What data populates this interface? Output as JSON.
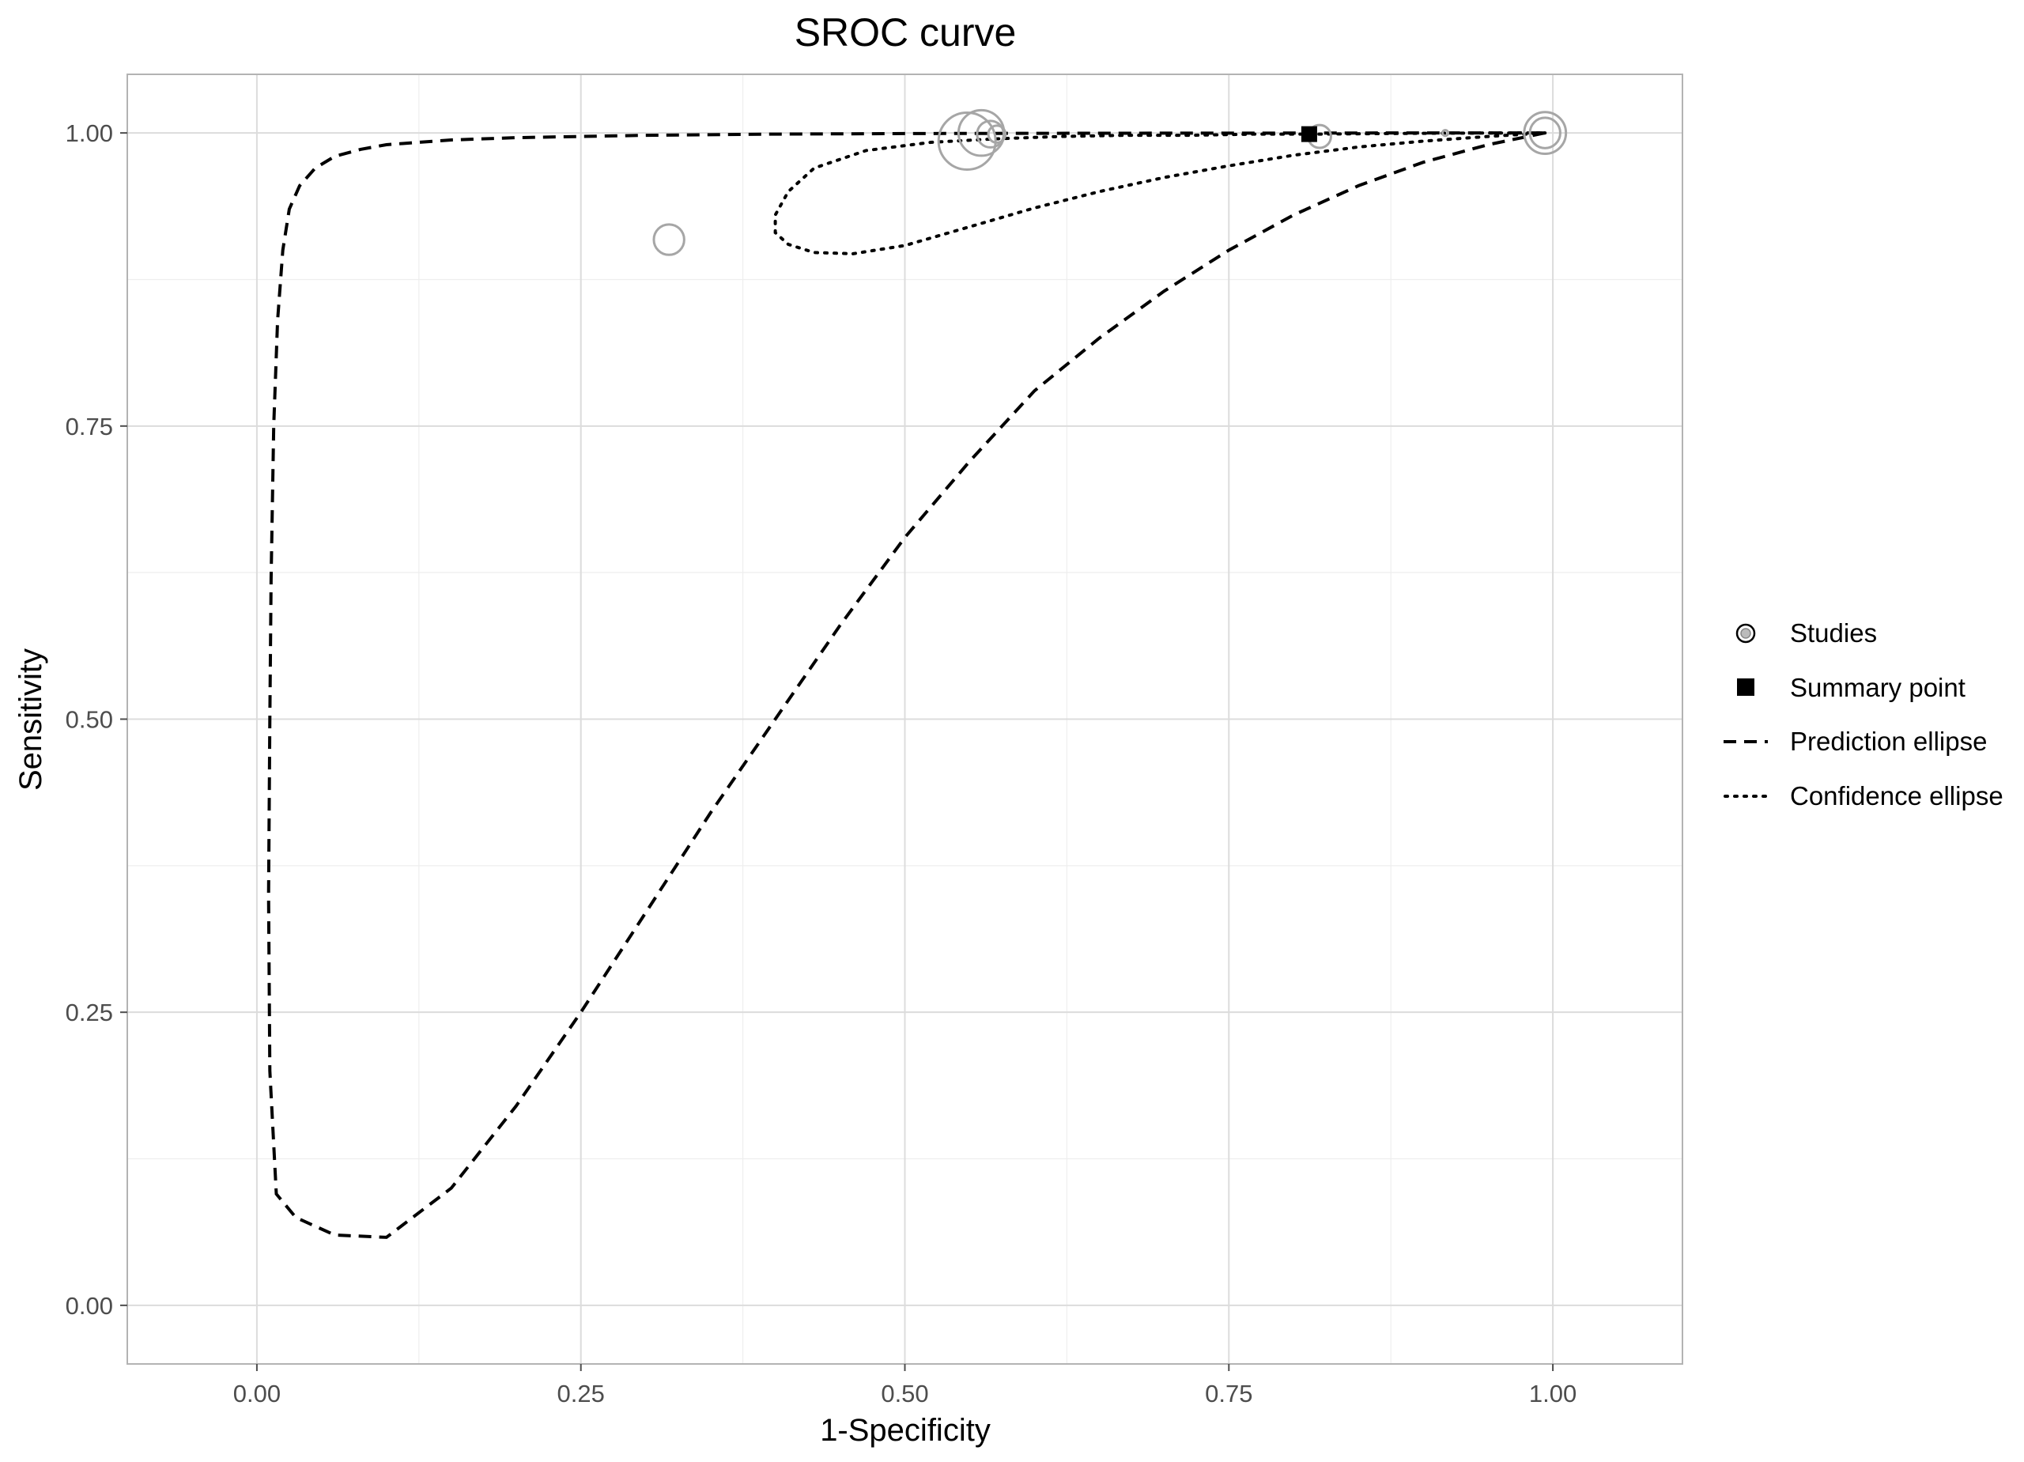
{
  "chart_data": {
    "type": "scatter",
    "title": "SROC curve",
    "xlabel": "1-Specificity",
    "ylabel": "Sensitivity",
    "xlim": [
      -0.1,
      1.1
    ],
    "ylim": [
      -0.05,
      1.05
    ],
    "x_ticks": [
      0.0,
      0.25,
      0.5,
      0.75,
      1.0
    ],
    "y_ticks": [
      0.0,
      0.25,
      0.5,
      0.75,
      1.0
    ],
    "x_tick_labels": [
      "0.00",
      "0.25",
      "0.50",
      "0.75",
      "1.00"
    ],
    "y_tick_labels": [
      "0.00",
      "0.25",
      "0.50",
      "0.75",
      "1.00"
    ],
    "grid": true,
    "legend_position": "right",
    "legend": [
      {
        "label": "Studies",
        "symbol": "open-circle"
      },
      {
        "label": "Summary point",
        "symbol": "filled-square"
      },
      {
        "label": "Prediction ellipse",
        "symbol": "dashed-line"
      },
      {
        "label": "Confidence ellipse",
        "symbol": "dotted-line"
      }
    ],
    "studies": [
      {
        "x": 0.318,
        "y": 0.909,
        "weight": 1.6
      },
      {
        "x": 0.548,
        "y": 0.993,
        "weight": 3.0
      },
      {
        "x": 0.559,
        "y": 1.0,
        "weight": 2.4
      },
      {
        "x": 0.566,
        "y": 0.999,
        "weight": 1.4
      },
      {
        "x": 0.571,
        "y": 0.999,
        "weight": 0.9
      },
      {
        "x": 0.82,
        "y": 0.997,
        "weight": 1.2
      },
      {
        "x": 0.917,
        "y": 1.0,
        "weight": 0.3
      },
      {
        "x": 0.994,
        "y": 1.0,
        "weight": 2.2
      },
      {
        "x": 0.994,
        "y": 1.0,
        "weight": 1.6
      }
    ],
    "summary_point": {
      "x": 0.812,
      "y": 0.999
    },
    "prediction_ellipse": {
      "x": [
        0.994,
        0.95,
        0.9,
        0.85,
        0.8,
        0.75,
        0.7,
        0.65,
        0.6,
        0.55,
        0.5,
        0.45,
        0.4,
        0.35,
        0.3,
        0.25,
        0.2,
        0.15,
        0.1,
        0.06,
        0.03,
        0.015,
        0.01,
        0.009,
        0.01,
        0.011,
        0.013,
        0.016,
        0.02,
        0.025,
        0.033,
        0.045,
        0.06,
        0.08,
        0.1,
        0.15,
        0.2,
        0.3,
        0.4,
        0.5,
        0.6,
        0.7,
        0.8,
        0.9,
        0.994
      ],
      "y": [
        1.0,
        0.99,
        0.975,
        0.955,
        0.93,
        0.9,
        0.865,
        0.825,
        0.78,
        0.72,
        0.655,
        0.58,
        0.5,
        0.42,
        0.335,
        0.25,
        0.17,
        0.1,
        0.058,
        0.06,
        0.075,
        0.095,
        0.2,
        0.35,
        0.5,
        0.62,
        0.75,
        0.84,
        0.9,
        0.935,
        0.955,
        0.97,
        0.98,
        0.986,
        0.99,
        0.994,
        0.996,
        0.998,
        0.999,
        0.9995,
        0.9997,
        0.9998,
        0.9999,
        1.0,
        1.0
      ]
    },
    "confidence_ellipse": {
      "x": [
        0.994,
        0.95,
        0.9,
        0.85,
        0.8,
        0.75,
        0.7,
        0.65,
        0.6,
        0.55,
        0.5,
        0.46,
        0.43,
        0.41,
        0.4,
        0.4,
        0.41,
        0.43,
        0.47,
        0.52,
        0.57,
        0.62,
        0.67,
        0.72,
        0.77,
        0.82,
        0.87,
        0.92,
        0.994
      ],
      "y": [
        1.0,
        0.997,
        0.993,
        0.988,
        0.981,
        0.972,
        0.962,
        0.95,
        0.936,
        0.92,
        0.904,
        0.897,
        0.898,
        0.905,
        0.915,
        0.93,
        0.95,
        0.97,
        0.985,
        0.992,
        0.995,
        0.997,
        0.998,
        0.998,
        0.999,
        0.999,
        0.9995,
        0.9998,
        1.0
      ]
    }
  }
}
